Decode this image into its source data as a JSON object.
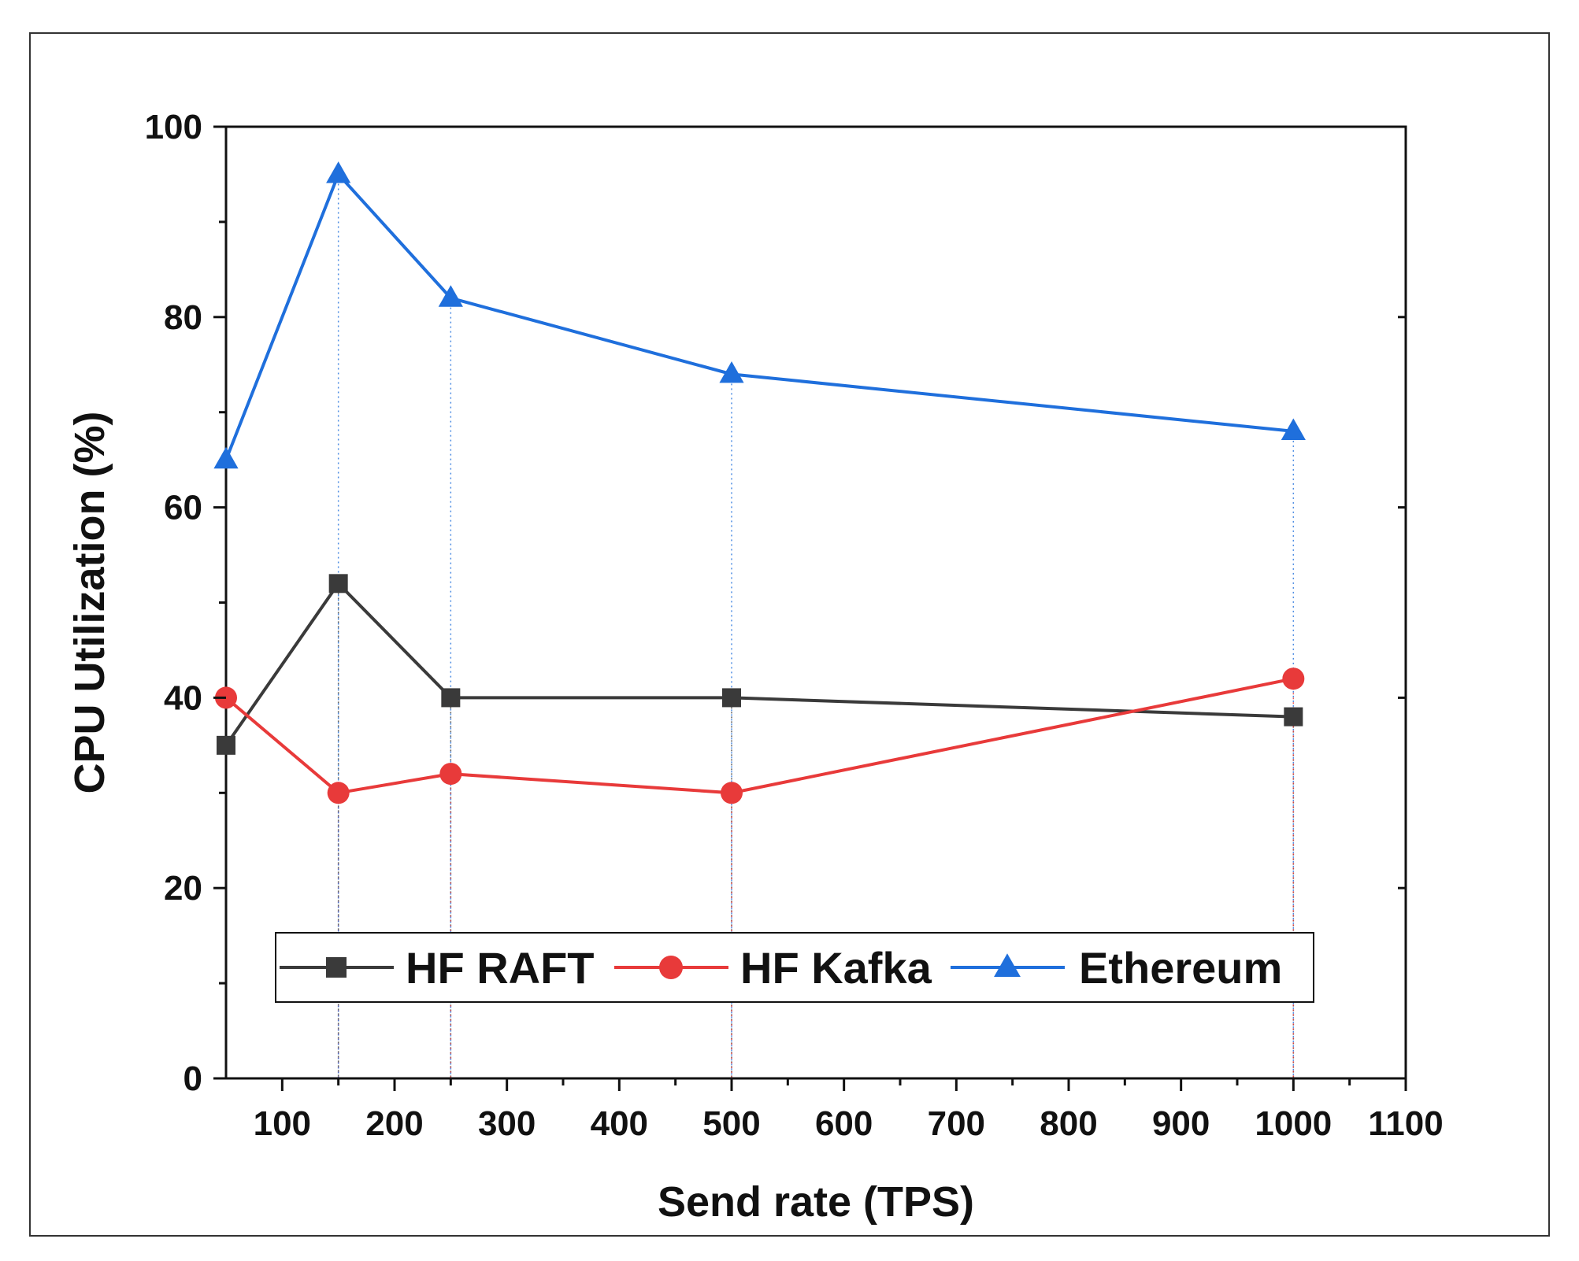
{
  "chart_data": {
    "type": "line",
    "title": "",
    "xlabel": "Send rate (TPS)",
    "ylabel": "CPU Utilization (%)",
    "xlim": [
      50,
      1100
    ],
    "ylim": [
      0,
      100
    ],
    "x_ticks": [
      100,
      200,
      300,
      400,
      500,
      600,
      700,
      800,
      900,
      1000,
      1100
    ],
    "y_ticks": [
      0,
      20,
      40,
      60,
      80,
      100
    ],
    "x": [
      50,
      150,
      250,
      500,
      1000
    ],
    "series": [
      {
        "name": "HF RAFT",
        "marker": "square",
        "color": "#3a3a3a",
        "values": [
          35,
          52,
          40,
          40,
          38
        ]
      },
      {
        "name": "HF Kafka",
        "marker": "circle",
        "color": "#e83a3a",
        "values": [
          40,
          30,
          32,
          30,
          42
        ]
      },
      {
        "name": "Ethereum",
        "marker": "triangle",
        "color": "#1f6fdc",
        "values": [
          65,
          95,
          82,
          74,
          68
        ]
      }
    ],
    "legend_position": "bottom-center",
    "grid": false,
    "drop_lines": true
  }
}
